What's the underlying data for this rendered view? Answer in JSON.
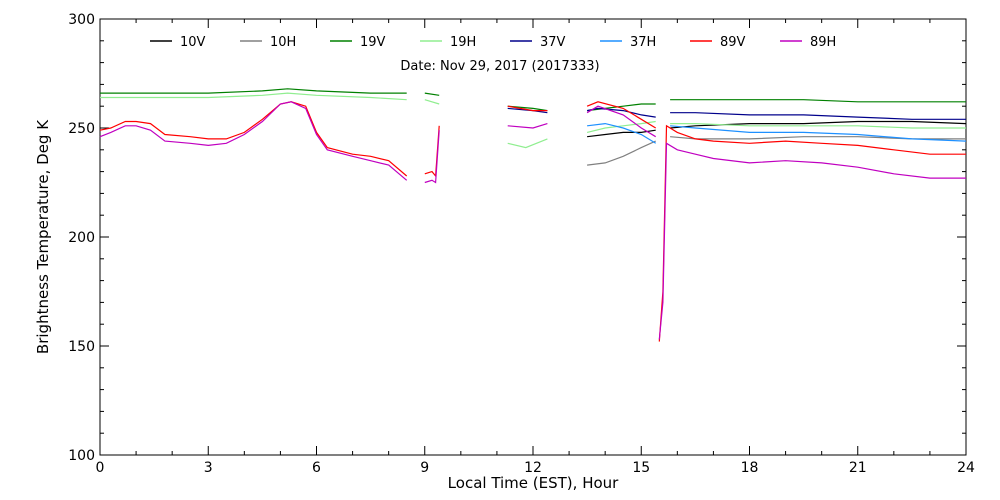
{
  "chart_data": {
    "type": "line",
    "subtitle": "Date: Nov 29, 2017 (2017333)",
    "xlabel": "Local Time (EST), Hour",
    "ylabel": "Brightness Temperature, Deg K",
    "xlim": [
      0,
      24
    ],
    "ylim": [
      100,
      300
    ],
    "xticks": [
      0,
      3,
      6,
      9,
      12,
      15,
      18,
      21,
      24
    ],
    "yticks": [
      100,
      150,
      200,
      250,
      300
    ],
    "grid": false,
    "legend_position": "top",
    "series": [
      {
        "name": "10V",
        "color": "#000000",
        "segments": [
          [
            [
              13.5,
              246
            ],
            [
              14.0,
              247
            ],
            [
              14.5,
              248
            ],
            [
              15.0,
              248
            ],
            [
              15.4,
              249
            ]
          ],
          [
            [
              15.8,
              250
            ],
            [
              16.5,
              251
            ],
            [
              18.0,
              252
            ],
            [
              19.5,
              252
            ],
            [
              21.0,
              253
            ],
            [
              22.5,
              253
            ],
            [
              24.0,
              252
            ]
          ]
        ]
      },
      {
        "name": "10H",
        "color": "#808080",
        "segments": [
          [
            [
              13.5,
              233
            ],
            [
              14.0,
              234
            ],
            [
              14.5,
              237
            ],
            [
              15.0,
              241
            ],
            [
              15.4,
              244
            ]
          ],
          [
            [
              15.8,
              246
            ],
            [
              16.5,
              245
            ],
            [
              18.0,
              245
            ],
            [
              19.5,
              246
            ],
            [
              21.0,
              246
            ],
            [
              22.5,
              245
            ],
            [
              24.0,
              245
            ]
          ]
        ]
      },
      {
        "name": "19V",
        "color": "#008000",
        "segments": [
          [
            [
              0.0,
              266
            ],
            [
              1.5,
              266
            ],
            [
              3.0,
              266
            ],
            [
              4.5,
              267
            ],
            [
              5.2,
              268
            ],
            [
              6.0,
              267
            ],
            [
              7.5,
              266
            ],
            [
              8.5,
              266
            ]
          ],
          [
            [
              9.0,
              266
            ],
            [
              9.4,
              265
            ]
          ],
          [
            [
              11.3,
              260
            ],
            [
              12.0,
              259
            ],
            [
              12.4,
              258
            ]
          ],
          [
            [
              13.5,
              258
            ],
            [
              14.0,
              259
            ],
            [
              14.5,
              260
            ],
            [
              15.0,
              261
            ],
            [
              15.4,
              261
            ]
          ],
          [
            [
              15.8,
              263
            ],
            [
              16.5,
              263
            ],
            [
              18.0,
              263
            ],
            [
              19.5,
              263
            ],
            [
              21.0,
              262
            ],
            [
              22.5,
              262
            ],
            [
              24.0,
              262
            ]
          ]
        ]
      },
      {
        "name": "19H",
        "color": "#90ee90",
        "segments": [
          [
            [
              0.0,
              264
            ],
            [
              1.5,
              264
            ],
            [
              3.0,
              264
            ],
            [
              4.5,
              265
            ],
            [
              5.2,
              266
            ],
            [
              6.0,
              265
            ],
            [
              7.5,
              264
            ],
            [
              8.5,
              263
            ]
          ],
          [
            [
              9.0,
              263
            ],
            [
              9.4,
              261
            ]
          ],
          [
            [
              11.3,
              243
            ],
            [
              11.8,
              241
            ],
            [
              12.4,
              245
            ]
          ],
          [
            [
              13.5,
              248
            ],
            [
              14.0,
              250
            ],
            [
              14.5,
              251
            ],
            [
              15.0,
              252
            ],
            [
              15.4,
              253
            ]
          ],
          [
            [
              15.8,
              252
            ],
            [
              16.5,
              252
            ],
            [
              18.0,
              251
            ],
            [
              19.5,
              251
            ],
            [
              21.0,
              251
            ],
            [
              22.5,
              250
            ],
            [
              24.0,
              250
            ]
          ]
        ]
      },
      {
        "name": "37V",
        "color": "#00008b",
        "segments": [
          [
            [
              11.3,
              259
            ],
            [
              12.0,
              258
            ],
            [
              12.4,
              257
            ]
          ],
          [
            [
              13.5,
              258
            ],
            [
              13.8,
              259
            ],
            [
              14.5,
              258
            ],
            [
              15.0,
              256
            ],
            [
              15.4,
              255
            ]
          ],
          [
            [
              15.8,
              257
            ],
            [
              16.5,
              257
            ],
            [
              18.0,
              256
            ],
            [
              19.5,
              256
            ],
            [
              21.0,
              255
            ],
            [
              22.5,
              254
            ],
            [
              24.0,
              254
            ]
          ]
        ]
      },
      {
        "name": "37H",
        "color": "#1e90ff",
        "segments": [
          [
            [
              13.5,
              251
            ],
            [
              14.0,
              252
            ],
            [
              14.5,
              250
            ],
            [
              15.0,
              247
            ],
            [
              15.4,
              243
            ]
          ],
          [
            [
              15.8,
              251
            ],
            [
              16.5,
              250
            ],
            [
              18.0,
              248
            ],
            [
              19.5,
              248
            ],
            [
              21.0,
              247
            ],
            [
              22.5,
              245
            ],
            [
              24.0,
              244
            ]
          ]
        ]
      },
      {
        "name": "89V",
        "color": "#ff0000",
        "segments": [
          [
            [
              0.0,
              249
            ],
            [
              0.3,
              250
            ],
            [
              0.7,
              253
            ],
            [
              1.0,
              253
            ],
            [
              1.4,
              252
            ],
            [
              1.8,
              247
            ],
            [
              2.5,
              246
            ],
            [
              3.0,
              245
            ],
            [
              3.5,
              245
            ],
            [
              4.0,
              248
            ],
            [
              4.5,
              254
            ],
            [
              5.0,
              261
            ],
            [
              5.3,
              262
            ],
            [
              5.7,
              260
            ],
            [
              6.0,
              248
            ],
            [
              6.3,
              241
            ],
            [
              7.0,
              238
            ],
            [
              7.5,
              237
            ],
            [
              8.0,
              235
            ],
            [
              8.5,
              228
            ]
          ],
          [
            [
              9.0,
              229
            ],
            [
              9.2,
              230
            ],
            [
              9.3,
              228
            ],
            [
              9.4,
              251
            ]
          ],
          [
            [
              11.3,
              260
            ],
            [
              12.0,
              258
            ],
            [
              12.4,
              258
            ]
          ],
          [
            [
              13.5,
              260
            ],
            [
              13.8,
              262
            ],
            [
              14.5,
              259
            ],
            [
              15.0,
              254
            ],
            [
              15.4,
              250
            ]
          ],
          [
            [
              15.5,
              152
            ],
            [
              15.6,
              175
            ],
            [
              15.7,
              251
            ],
            [
              16.0,
              248
            ],
            [
              16.5,
              245
            ],
            [
              17.0,
              244
            ],
            [
              18.0,
              243
            ],
            [
              19.0,
              244
            ],
            [
              20.0,
              243
            ],
            [
              21.0,
              242
            ],
            [
              22.0,
              240
            ],
            [
              23.0,
              238
            ],
            [
              24.0,
              238
            ]
          ]
        ]
      },
      {
        "name": "89H",
        "color": "#c000c0",
        "segments": [
          [
            [
              0.0,
              246
            ],
            [
              0.3,
              248
            ],
            [
              0.7,
              251
            ],
            [
              1.0,
              251
            ],
            [
              1.4,
              249
            ],
            [
              1.8,
              244
            ],
            [
              2.5,
              243
            ],
            [
              3.0,
              242
            ],
            [
              3.5,
              243
            ],
            [
              4.0,
              247
            ],
            [
              4.5,
              253
            ],
            [
              5.0,
              261
            ],
            [
              5.3,
              262
            ],
            [
              5.7,
              259
            ],
            [
              6.0,
              247
            ],
            [
              6.3,
              240
            ],
            [
              7.0,
              237
            ],
            [
              7.5,
              235
            ],
            [
              8.0,
              233
            ],
            [
              8.5,
              226
            ]
          ],
          [
            [
              9.0,
              225
            ],
            [
              9.2,
              226
            ],
            [
              9.3,
              225
            ],
            [
              9.4,
              249
            ]
          ],
          [
            [
              11.3,
              251
            ],
            [
              12.0,
              250
            ],
            [
              12.4,
              252
            ]
          ],
          [
            [
              13.5,
              257
            ],
            [
              13.8,
              260
            ],
            [
              14.5,
              256
            ],
            [
              15.0,
              250
            ],
            [
              15.4,
              246
            ]
          ],
          [
            [
              15.5,
              153
            ],
            [
              15.6,
              170
            ],
            [
              15.7,
              243
            ],
            [
              16.0,
              240
            ],
            [
              16.5,
              238
            ],
            [
              17.0,
              236
            ],
            [
              18.0,
              234
            ],
            [
              19.0,
              235
            ],
            [
              20.0,
              234
            ],
            [
              21.0,
              232
            ],
            [
              22.0,
              229
            ],
            [
              23.0,
              227
            ],
            [
              24.0,
              227
            ]
          ]
        ]
      }
    ]
  }
}
